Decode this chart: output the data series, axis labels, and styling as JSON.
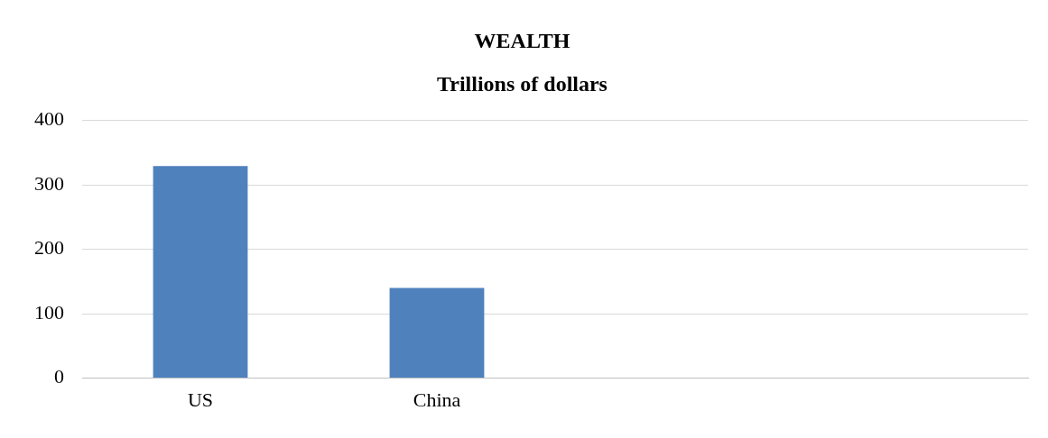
{
  "chart_data": {
    "type": "bar",
    "title": "WEALTH",
    "subtitle": "Trillions of dollars",
    "categories": [
      "US",
      "China",
      null,
      null
    ],
    "values": [
      329,
      140,
      null,
      null
    ],
    "color": "#4f81bd",
    "ylim": [
      0,
      400
    ],
    "yticks": [
      0,
      100,
      200,
      300,
      400
    ],
    "grid": "y"
  }
}
